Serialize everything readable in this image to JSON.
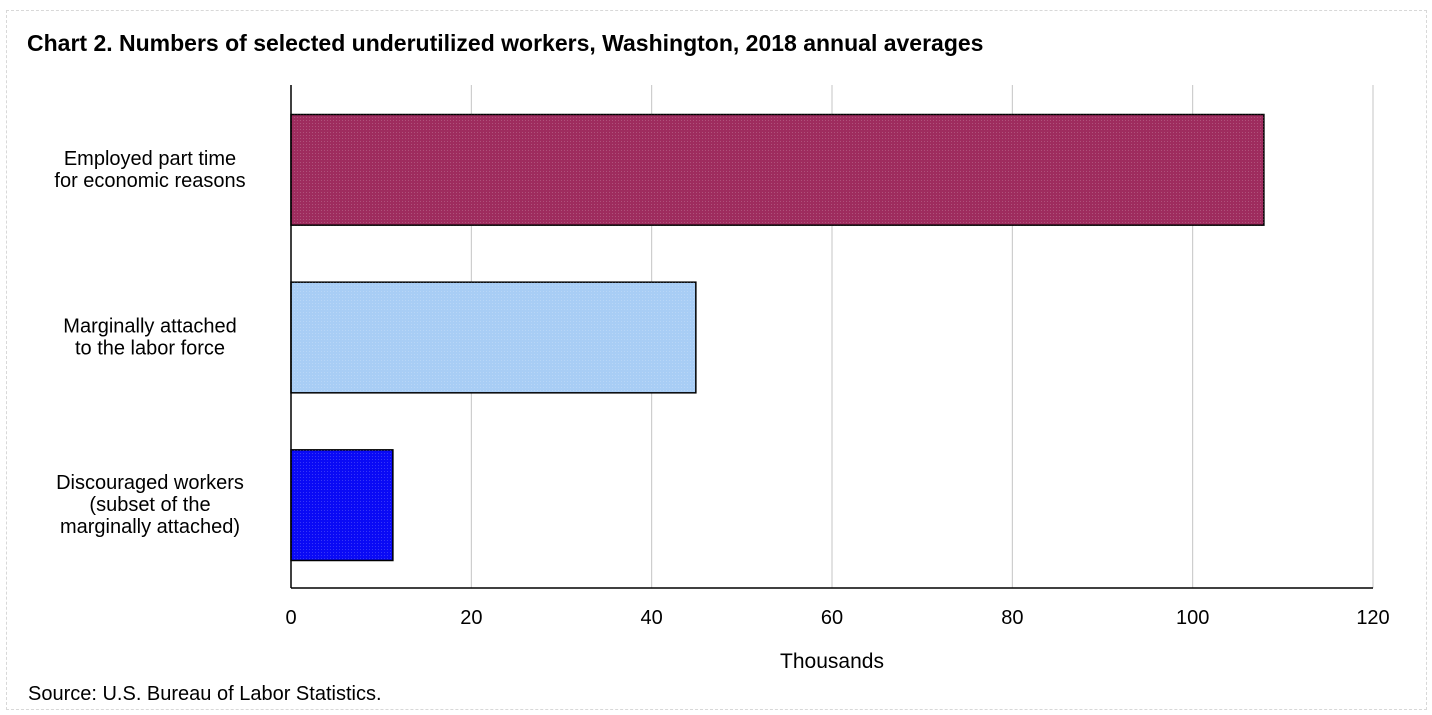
{
  "chart_data": {
    "type": "bar",
    "orientation": "horizontal",
    "title": "Chart 2. Numbers of selected underutilized workers, Washington, 2018 annual averages",
    "categories": [
      [
        "Employed part time",
        "for economic reasons"
      ],
      [
        "Marginally attached",
        "to the labor force"
      ],
      [
        "Discouraged workers",
        "(subset of the",
        "marginally attached)"
      ]
    ],
    "values": [
      107.9,
      44.9,
      11.3
    ],
    "bar_colors": [
      "#9e2c5e",
      "#a8cdf5",
      "#0a0af5"
    ],
    "xlabel": "Thousands",
    "ylabel": "",
    "xlim": [
      0,
      120
    ],
    "xticks": [
      0,
      20,
      40,
      60,
      80,
      100,
      120
    ],
    "xtick_labels": [
      "0",
      "20",
      "40",
      "60",
      "80",
      "100",
      "120"
    ],
    "grid": "vertical",
    "legend": "none",
    "source": "Source: U.S. Bureau of Labor Statistics."
  }
}
